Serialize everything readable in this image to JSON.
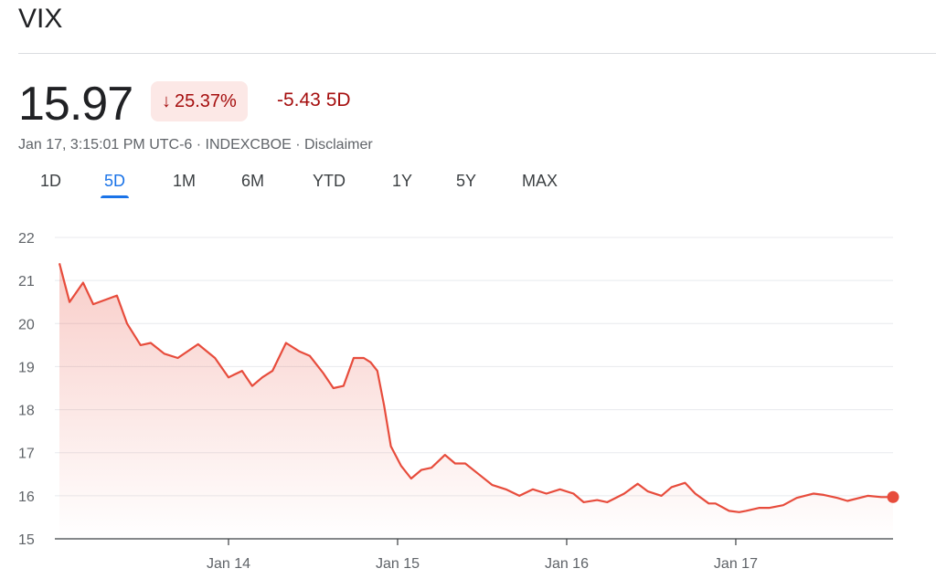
{
  "header": {
    "title": "VIX",
    "price": "15.97",
    "change_percent": "25.37%",
    "change_direction_icon": "arrow-down-icon",
    "change_points": "-5.43 5D",
    "meta": [
      "Jan 17, 3:15:01 PM UTC-6",
      "INDEXCBOE",
      "Disclaimer"
    ]
  },
  "tabs": [
    {
      "label": "1D",
      "active": false
    },
    {
      "label": "5D",
      "active": true
    },
    {
      "label": "1M",
      "active": false
    },
    {
      "label": "6M",
      "active": false
    },
    {
      "label": "YTD",
      "active": false
    },
    {
      "label": "1Y",
      "active": false
    },
    {
      "label": "5Y",
      "active": false
    },
    {
      "label": "MAX",
      "active": false
    }
  ],
  "colors": {
    "line": "#e74c3c",
    "negative_text": "#a50e0e",
    "negative_bg": "#fce8e6",
    "active_tab": "#1a73e8"
  },
  "chart_data": {
    "type": "area",
    "title": "",
    "xlabel": "",
    "ylabel": "",
    "y_ticks": [
      "22",
      "21",
      "20",
      "19",
      "18",
      "17",
      "16",
      "15"
    ],
    "x_ticks": [
      "Jan 14",
      "Jan 15",
      "Jan 16",
      "Jan 17"
    ],
    "xlim": [
      13.0,
      17.93
    ],
    "grid": true,
    "last_value": 15.97,
    "series": [
      {
        "x": [
          13.0,
          13.06,
          13.14,
          13.2,
          13.34,
          13.4,
          13.48,
          13.54,
          13.62,
          13.7,
          13.82,
          13.92,
          14.0,
          14.08,
          14.14,
          14.2,
          14.26,
          14.34,
          14.42,
          14.48,
          14.56,
          14.62,
          14.68,
          14.74,
          14.8,
          14.84,
          14.88,
          14.92,
          14.96,
          15.02,
          15.08,
          15.14,
          15.2,
          15.28,
          15.34,
          15.4,
          15.48,
          15.56,
          15.64,
          15.72,
          15.8,
          15.88,
          15.96,
          16.04,
          16.1,
          16.18,
          16.24,
          16.34,
          16.42,
          16.48,
          16.56,
          16.62,
          16.7,
          16.76,
          16.84,
          16.88,
          16.96,
          17.02,
          17.06,
          17.14,
          17.2,
          17.28,
          17.36,
          17.46,
          17.52,
          17.6,
          17.66,
          17.78,
          17.86,
          17.93
        ],
        "y": [
          21.4,
          20.5,
          20.95,
          20.45,
          20.65,
          20.0,
          19.5,
          19.55,
          19.3,
          19.2,
          19.52,
          19.2,
          18.75,
          18.9,
          18.55,
          18.75,
          18.9,
          19.55,
          19.35,
          19.25,
          18.85,
          18.5,
          18.55,
          19.2,
          19.2,
          19.1,
          18.9,
          18.1,
          17.15,
          16.7,
          16.4,
          16.6,
          16.65,
          16.95,
          16.75,
          16.75,
          16.5,
          16.25,
          16.15,
          16.0,
          16.15,
          16.05,
          16.15,
          16.05,
          15.85,
          15.9,
          15.85,
          16.05,
          16.28,
          16.1,
          16.0,
          16.2,
          16.3,
          16.05,
          15.82,
          15.82,
          15.65,
          15.62,
          15.65,
          15.72,
          15.72,
          15.78,
          15.95,
          16.05,
          16.02,
          15.95,
          15.88,
          16.0,
          15.97,
          15.97
        ]
      }
    ]
  }
}
